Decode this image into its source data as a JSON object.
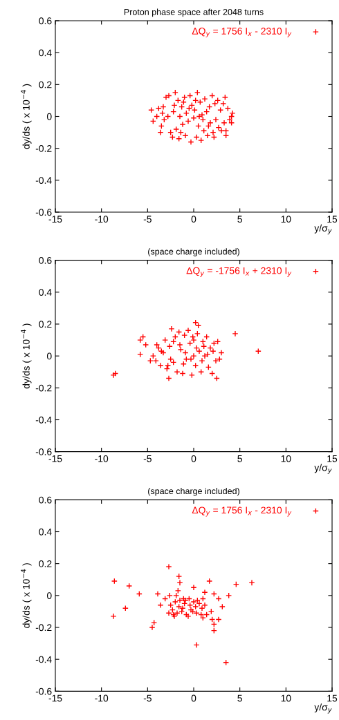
{
  "chart_data": [
    {
      "type": "scatter",
      "title": "Proton phase space after 2048 turns",
      "xlabel": "y/σ$_{y}$",
      "ylabel": "dy/ds ( x 10$^{−4}$ )",
      "xlim": [
        -15,
        15
      ],
      "ylim": [
        -0.6,
        0.6
      ],
      "xticks": [
        -15,
        -10,
        -5,
        0,
        5,
        10,
        15
      ],
      "yticks": [
        -0.6,
        -0.4,
        -0.2,
        0,
        0.2,
        0.4,
        0.6
      ],
      "grid": false,
      "legend": "top right",
      "marker": "cross",
      "series": [
        {
          "name": "ΔQ$_{y}$ = 1756 I$_{x}$ - 2310 I$_{y}$",
          "color": "#ff0000",
          "x": [
            -4.6,
            -4.4,
            -4.0,
            -3.8,
            -3.6,
            -3.5,
            -3.3,
            -3.2,
            -3.0,
            -2.7,
            -2.5,
            -2.3,
            -2.2,
            -2.0,
            -1.9,
            -1.7,
            -1.6,
            -1.5,
            -1.3,
            -1.2,
            -1.0,
            -0.9,
            -0.8,
            -0.6,
            -0.4,
            -0.3,
            -0.2,
            0.0,
            0.1,
            0.3,
            0.4,
            0.5,
            0.7,
            0.8,
            0.9,
            1.1,
            1.2,
            1.4,
            1.5,
            1.7,
            1.8,
            2.0,
            2.1,
            2.3,
            2.4,
            2.6,
            2.7,
            2.9,
            3.0,
            3.2,
            3.3,
            3.5,
            3.5,
            3.4,
            3.7,
            3.9,
            4.1,
            4.2,
            4.1,
            -2.8,
            -0.5,
            0.6,
            1.0,
            -1.4,
            2.2,
            -1.1,
            -2.1,
            0.2,
            1.6,
            -3.4
          ],
          "values": [
            0.04,
            -0.03,
            0.0,
            0.05,
            -0.1,
            -0.06,
            0.06,
            -0.02,
            0.12,
            0.13,
            -0.1,
            -0.13,
            0.03,
            0.15,
            -0.08,
            0.1,
            -0.14,
            0.0,
            0.06,
            -0.05,
            0.12,
            -0.12,
            0.02,
            -0.03,
            0.13,
            -0.16,
            0.07,
            -0.01,
            0.04,
            -0.13,
            0.15,
            -0.06,
            0.09,
            -0.15,
            0.01,
            -0.09,
            0.11,
            0.03,
            -0.12,
            0.06,
            -0.04,
            0.13,
            -0.1,
            0.08,
            -0.02,
            0.1,
            -0.07,
            0.04,
            -0.09,
            0.08,
            -0.04,
            -0.12,
            -0.09,
            0.12,
            0.05,
            -0.02,
            0.0,
            0.02,
            -0.04,
            0.0,
            0.05,
            0.0,
            -0.02,
            -0.1,
            -0.13,
            0.09,
            0.07,
            0.1,
            -0.06,
            0.02
          ]
        }
      ]
    },
    {
      "type": "scatter",
      "title": "(space charge included)",
      "xlabel": "y/σ$_{y}$",
      "ylabel": "dy/ds ( x 10$^{−4}$ )",
      "xlim": [
        -15,
        15
      ],
      "ylim": [
        -0.6,
        0.6
      ],
      "xticks": [
        -15,
        -10,
        -5,
        0,
        5,
        10,
        15
      ],
      "yticks": [
        -0.6,
        -0.4,
        -0.2,
        0,
        0.2,
        0.4,
        0.6
      ],
      "grid": false,
      "legend": "top right",
      "marker": "cross",
      "series": [
        {
          "name": "ΔQ$_{y}$ = -1756 I$_{x}$ + 2310 I$_{y}$",
          "color": "#ff0000",
          "x": [
            -8.7,
            -8.5,
            4.5,
            7.0,
            -5.8,
            -5.8,
            -5.5,
            -5.2,
            -4.0,
            -4.7,
            0.2,
            0.5,
            2.5,
            -2.7,
            3.0,
            2.8,
            -4.4,
            -4.1,
            -3.8,
            -3.6,
            -3.3,
            -3.1,
            -2.9,
            -2.6,
            -2.4,
            -2.2,
            -2.0,
            -1.8,
            -1.6,
            -1.4,
            -1.2,
            -1.0,
            -0.8,
            -0.6,
            -0.4,
            -0.2,
            0.0,
            0.2,
            0.4,
            0.6,
            0.8,
            1.0,
            1.2,
            1.4,
            1.6,
            1.8,
            2.0,
            2.2,
            2.4,
            2.6,
            -3.5,
            -2.8,
            -1.5,
            -0.9,
            -0.3,
            0.3,
            0.9,
            1.5,
            2.1,
            -2.2,
            -1.1,
            -0.1,
            1.1,
            -2.5,
            0.0
          ],
          "values": [
            -0.12,
            -0.11,
            0.14,
            0.03,
            0.01,
            0.1,
            0.12,
            0.07,
            0.07,
            -0.03,
            0.21,
            0.19,
            -0.14,
            -0.14,
            0.02,
            -0.02,
            0.0,
            -0.03,
            0.05,
            -0.06,
            0.02,
            0.1,
            -0.08,
            0.06,
            0.17,
            -0.04,
            0.12,
            -0.1,
            0.15,
            0.04,
            -0.11,
            0.13,
            -0.02,
            0.16,
            0.08,
            -0.12,
            0.1,
            -0.06,
            0.14,
            0.03,
            -0.1,
            0.09,
            0.0,
            0.12,
            -0.07,
            0.05,
            -0.11,
            0.08,
            -0.03,
            0.09,
            0.03,
            -0.06,
            0.07,
            0.02,
            -0.02,
            0.05,
            -0.03,
            0.01,
            0.03,
            0.09,
            -0.05,
            0.12,
            0.06,
            -0.02,
            0.0
          ]
        }
      ]
    },
    {
      "type": "scatter",
      "title": "(space charge included)",
      "xlabel": "y/σ$_{y}$",
      "ylabel": "dy/ds ( x 10$^{−4}$ )",
      "xlim": [
        -15,
        15
      ],
      "ylim": [
        -0.6,
        0.6
      ],
      "xticks": [
        -15,
        -10,
        -5,
        0,
        5,
        10,
        15
      ],
      "yticks": [
        -0.6,
        -0.4,
        -0.2,
        0,
        0.2,
        0.4,
        0.6
      ],
      "grid": false,
      "legend": "top right",
      "marker": "cross",
      "series": [
        {
          "name": "ΔQ$_{y}$ = 1756 I$_{x}$ - 2310 I$_{y}$",
          "color": "#ff0000",
          "x": [
            -8.6,
            -8.7,
            -7.0,
            -7.4,
            -5.9,
            -4.5,
            -4.3,
            -3.9,
            -3.6,
            -3.1,
            -2.7,
            -2.6,
            -1.6,
            -1.5,
            -1.7,
            0.0,
            1.7,
            1.2,
            2.2,
            2.7,
            3.1,
            3.8,
            4.6,
            6.3,
            1.9,
            2.0,
            2.2,
            2.2,
            2.7,
            0.3,
            3.5,
            1.4,
            1.0,
            -2.5,
            -2.3,
            -2.0,
            -1.8,
            -1.5,
            -1.3,
            -1.0,
            -0.8,
            -0.5,
            -0.3,
            0.0,
            0.3,
            0.6,
            0.9,
            1.2,
            -2.2,
            -1.6,
            -1.1,
            -0.6,
            -0.1,
            0.4,
            0.8,
            -1.9,
            -1.2,
            -0.4,
            0.2,
            -2.7,
            -2.1,
            -0.9,
            1.0
          ],
          "values": [
            0.09,
            -0.13,
            0.06,
            -0.08,
            0.01,
            -0.2,
            -0.17,
            0.01,
            -0.06,
            -0.02,
            0.18,
            0.0,
            0.12,
            0.08,
            0.03,
            0.05,
            0.09,
            0.02,
            0.01,
            -0.02,
            -0.07,
            0.0,
            0.07,
            0.08,
            -0.1,
            -0.15,
            -0.18,
            -0.22,
            -0.15,
            -0.31,
            -0.42,
            -0.12,
            -0.14,
            -0.06,
            -0.09,
            -0.04,
            -0.11,
            -0.03,
            -0.1,
            -0.05,
            -0.12,
            -0.02,
            -0.09,
            -0.04,
            -0.11,
            -0.05,
            -0.08,
            -0.06,
            -0.12,
            -0.07,
            -0.02,
            -0.13,
            -0.1,
            -0.03,
            -0.12,
            0.0,
            -0.08,
            -0.06,
            -0.07,
            -0.11,
            -0.13,
            -0.03,
            -0.02
          ]
        }
      ]
    }
  ]
}
